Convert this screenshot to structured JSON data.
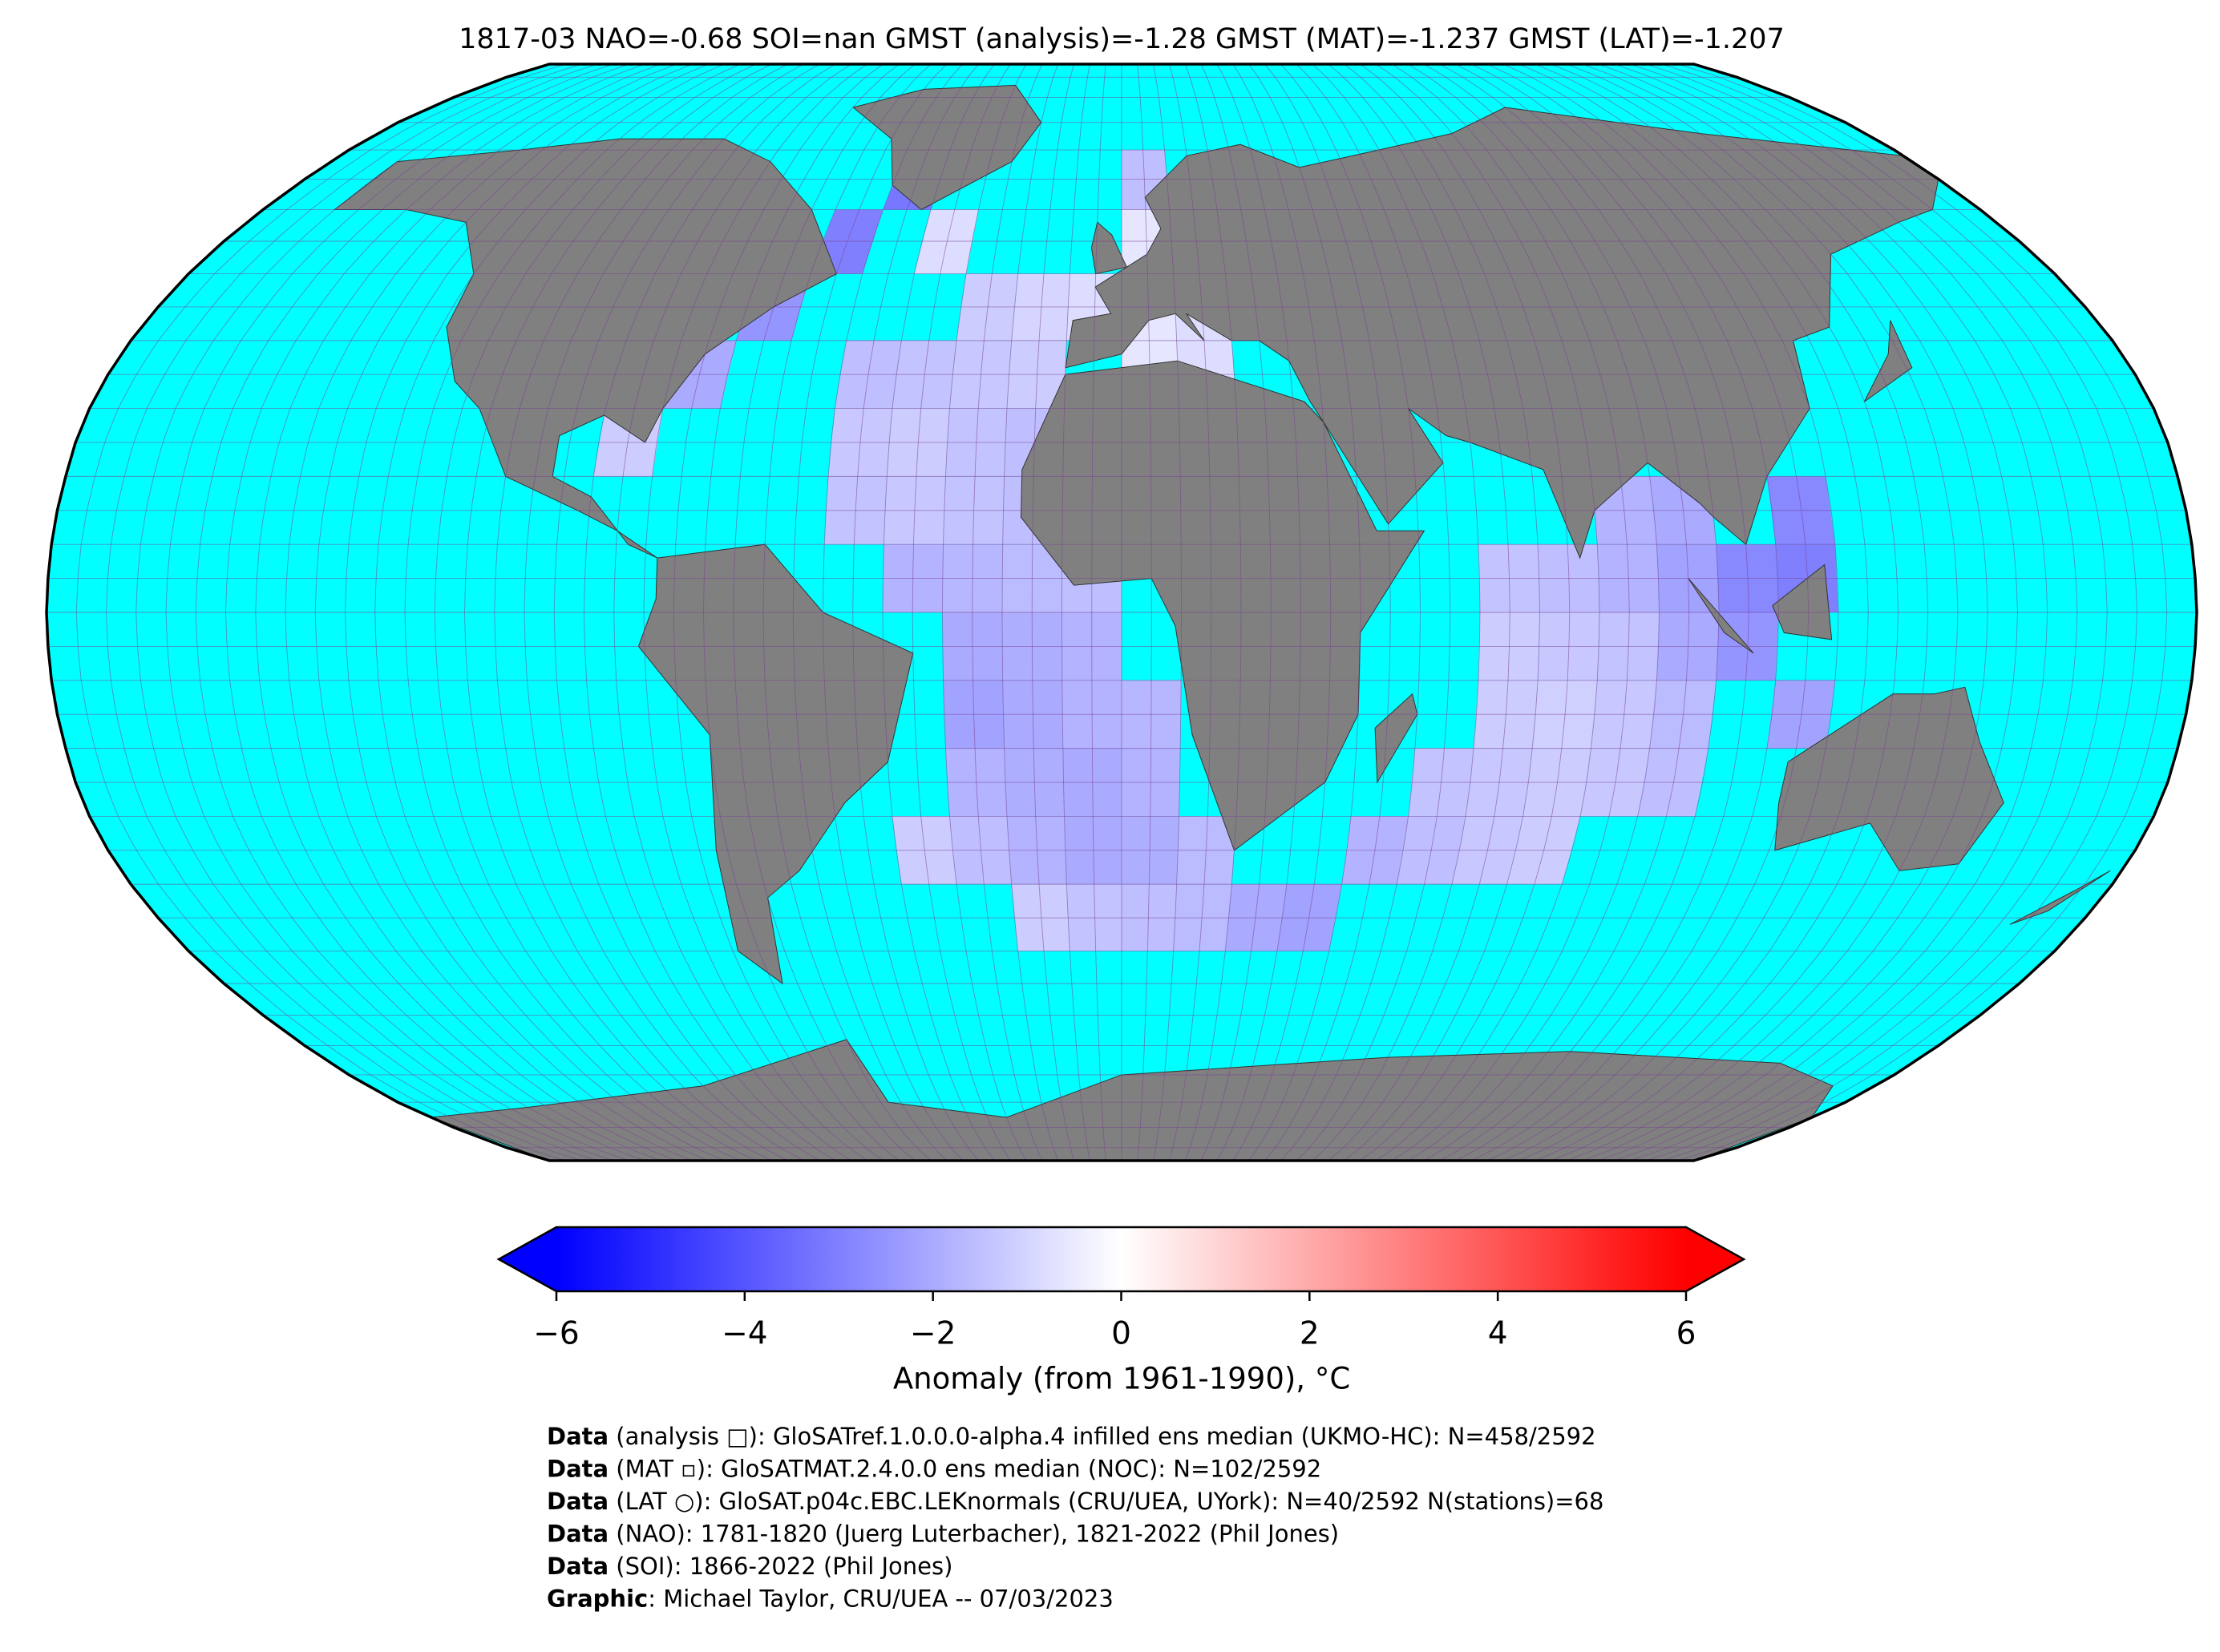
{
  "map": {
    "type": "choropleth-map",
    "title": "1817-03 NAO=-0.68 SOI=nan GMST (analysis)=-1.28 GMST (MAT)=-1.237 GMST (LAT)=-1.207",
    "colorbar": {
      "label": "Anomaly (from 1961-1990), °C",
      "lim": [
        -6,
        6
      ],
      "ticks": [
        {
          "value": -6,
          "label": "−6"
        },
        {
          "value": -4,
          "label": "−4"
        },
        {
          "value": -2,
          "label": "−2"
        },
        0,
        2,
        4,
        6
      ],
      "extend": "both",
      "colormap": "bwr"
    },
    "cells": {
      "lon": [
        -45,
        -55,
        -65,
        -75,
        -85,
        -35,
        5,
        15,
        25,
        35,
        45,
        5,
        15,
        25,
        -5,
        -15,
        -25,
        5,
        25,
        -25,
        -35,
        -45,
        -15,
        5,
        15,
        -45,
        -35,
        -25,
        -15,
        -45,
        -35,
        -25,
        -15,
        -35,
        -25,
        -15,
        -5,
        -25,
        -15,
        -5,
        -25,
        -15,
        -5,
        5,
        -25,
        -15,
        -5,
        5,
        -35,
        -25,
        -15,
        -5,
        5,
        15,
        -15,
        -5,
        5,
        15,
        25,
        35,
        45,
        55,
        65,
        75,
        55,
        65,
        75,
        85,
        95,
        65,
        75,
        85,
        95,
        65,
        75,
        85,
        95,
        105,
        65,
        75,
        85,
        95,
        105,
        115,
        85,
        95,
        115,
        115
      ],
      "lat": [
        65,
        55,
        45,
        35,
        25,
        55,
        55,
        55,
        55,
        55,
        55,
        45,
        45,
        45,
        45,
        45,
        45,
        65,
        65,
        35,
        35,
        35,
        35,
        35,
        35,
        25,
        25,
        25,
        25,
        15,
        15,
        15,
        15,
        5,
        5,
        5,
        5,
        -5,
        -5,
        -5,
        -15,
        -15,
        -15,
        -15,
        -25,
        -25,
        -25,
        -25,
        -35,
        -35,
        -35,
        -35,
        -35,
        -35,
        -45,
        -45,
        -45,
        -45,
        -45,
        -45,
        -35,
        -35,
        -35,
        -35,
        -25,
        -25,
        -25,
        -25,
        -25,
        -15,
        -15,
        -15,
        -15,
        -5,
        -5,
        -5,
        -5,
        -5,
        5,
        5,
        5,
        5,
        5,
        5,
        15,
        15,
        15,
        -15
      ],
      "values": [
        -3.2,
        -3,
        -2.5,
        -2,
        -1.2,
        -0.8,
        -0.6,
        -0.5,
        -0.3,
        -0.2,
        -0.5,
        -0.6,
        -0.8,
        -0.7,
        -0.8,
        -1,
        -1.2,
        -1.5,
        -1.8,
        -1.3,
        -1.4,
        -1.5,
        -1.2,
        -0.6,
        -0.8,
        -1.3,
        -1.2,
        -1.4,
        -1.5,
        -1.4,
        -1.3,
        -1.4,
        -1.5,
        -1.8,
        -1.7,
        -1.6,
        -1.5,
        -2,
        -1.9,
        -1.8,
        -2.2,
        -2,
        -1.8,
        -1.7,
        -1.8,
        -1.9,
        -2,
        -1.8,
        -1.2,
        -1.5,
        -1.8,
        -2,
        -1.9,
        -1.6,
        -1.2,
        -1.4,
        -1.5,
        -1.6,
        -2,
        -2.2,
        -1.8,
        -1.5,
        -1.3,
        -1.2,
        -1.4,
        -1.3,
        -1.2,
        -1.3,
        -1.5,
        -1.2,
        -1.1,
        -1.3,
        -1.6,
        -1.2,
        -1.3,
        -1.4,
        -2,
        -2.5,
        -1.4,
        -1.5,
        -1.8,
        -2.2,
        -2.8,
        -3,
        -1.8,
        -2,
        -2.8,
        -2.2
      ]
    },
    "credits": [
      {
        "label": "Data",
        "text": " (analysis □): GloSATref.1.0.0.0-alpha.4 infilled ens median (UKMO-HC): N=458/2592"
      },
      {
        "label": "Data",
        "text": " (MAT ▫): GloSATMAT.2.4.0.0 ens median (NOC): N=102/2592"
      },
      {
        "label": "Data",
        "text": " (LAT ○): GloSAT.p04c.EBC.LEKnormals (CRU/UEA, UYork): N=40/2592 N(stations)=68"
      },
      {
        "label": "Data",
        "text": " (NAO): 1781-1820 (Juerg Luterbacher), 1821-2022 (Phil Jones)"
      },
      {
        "label": "Data",
        "text": " (SOI): 1866-2022 (Phil Jones)"
      },
      {
        "label": "Graphic",
        "text": ": Michael Taylor, CRU/UEA -- 07/03/2023"
      }
    ]
  }
}
